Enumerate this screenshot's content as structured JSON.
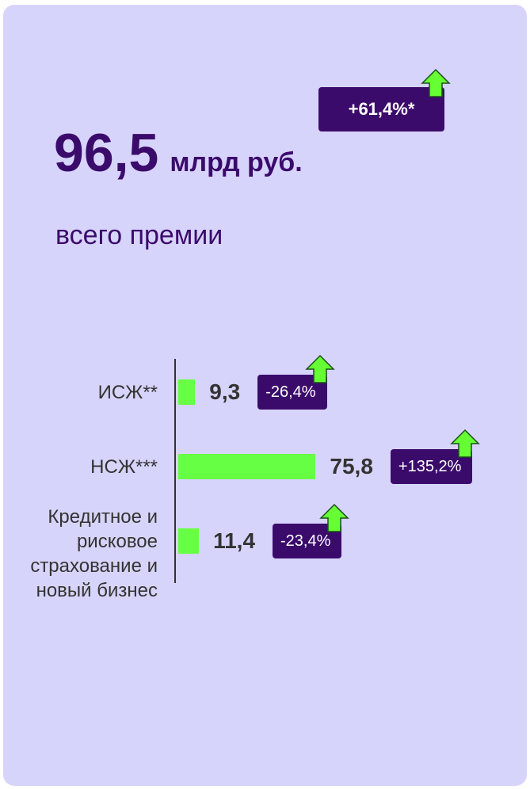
{
  "headline": {
    "value": "96,5",
    "unit": "млрд руб.",
    "caption": "всего премии",
    "change": "+61,4%*"
  },
  "chart_data": {
    "type": "bar",
    "orientation": "horizontal",
    "categories": [
      "ИСЖ**",
      "НСЖ***",
      "Кредитное и рисковое страхование и новый бизнес"
    ],
    "values": [
      9.3,
      75.8,
      11.4
    ],
    "value_labels": [
      "9,3",
      "75,8",
      "11,4"
    ],
    "change_labels": [
      "-26,4%",
      "+135,2%",
      "-23,4%"
    ],
    "color": "#66ff44",
    "xlim": [
      0,
      80
    ]
  }
}
